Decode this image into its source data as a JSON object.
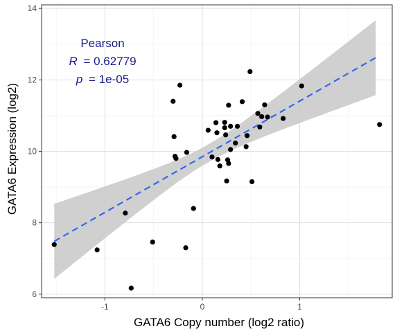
{
  "chart_data": {
    "type": "scatter",
    "xlabel": "GATA6 Copy number (log2 ratio)",
    "ylabel": "GATA6 Expression (log2)",
    "xlim": [
      -1.65,
      1.95
    ],
    "ylim": [
      5.9,
      14.1
    ],
    "x_ticks": [
      -1,
      0,
      1
    ],
    "y_ticks": [
      6,
      8,
      10,
      12,
      14
    ],
    "grid": true,
    "colors": {
      "points": "#000000",
      "fit_line": "#3366ee",
      "ci_band": "#c8c8c8",
      "annotation": "#1a1a8c",
      "grid_major": "#e0e0e0",
      "grid_minor": "#f2f2f2",
      "panel_border": "#333333"
    },
    "annotation": {
      "title": "Pearson",
      "r_symbol": "R",
      "r_value": "= 0.62779",
      "p_symbol": "p",
      "p_value": "= 1e-05"
    },
    "fit": {
      "x": [
        -1.52,
        1.78
      ],
      "y": [
        7.48,
        12.62
      ],
      "ci_upper": [
        8.55,
        13.72
      ],
      "ci_lower": [
        6.45,
        11.62
      ],
      "ci_center_x": 0.05,
      "ci_center_half_width": 0.25
    },
    "points": [
      {
        "x": -1.52,
        "y": 7.39
      },
      {
        "x": -1.08,
        "y": 7.24
      },
      {
        "x": -0.79,
        "y": 8.27
      },
      {
        "x": -0.73,
        "y": 6.17
      },
      {
        "x": -0.51,
        "y": 7.46
      },
      {
        "x": -0.3,
        "y": 11.4
      },
      {
        "x": -0.29,
        "y": 10.41
      },
      {
        "x": -0.28,
        "y": 9.86
      },
      {
        "x": -0.27,
        "y": 9.8
      },
      {
        "x": -0.23,
        "y": 11.85
      },
      {
        "x": -0.17,
        "y": 7.3
      },
      {
        "x": -0.16,
        "y": 9.97
      },
      {
        "x": -0.09,
        "y": 8.4
      },
      {
        "x": 0.06,
        "y": 10.59
      },
      {
        "x": 0.1,
        "y": 9.84
      },
      {
        "x": 0.14,
        "y": 10.8
      },
      {
        "x": 0.15,
        "y": 10.52
      },
      {
        "x": 0.16,
        "y": 9.77
      },
      {
        "x": 0.18,
        "y": 9.59
      },
      {
        "x": 0.23,
        "y": 10.81
      },
      {
        "x": 0.23,
        "y": 10.66
      },
      {
        "x": 0.24,
        "y": 10.46
      },
      {
        "x": 0.25,
        "y": 9.17
      },
      {
        "x": 0.26,
        "y": 9.76
      },
      {
        "x": 0.27,
        "y": 9.66
      },
      {
        "x": 0.27,
        "y": 11.29
      },
      {
        "x": 0.29,
        "y": 10.7
      },
      {
        "x": 0.29,
        "y": 10.05
      },
      {
        "x": 0.34,
        "y": 10.23
      },
      {
        "x": 0.36,
        "y": 10.7
      },
      {
        "x": 0.41,
        "y": 11.39
      },
      {
        "x": 0.45,
        "y": 10.13
      },
      {
        "x": 0.46,
        "y": 10.44
      },
      {
        "x": 0.49,
        "y": 12.23
      },
      {
        "x": 0.51,
        "y": 9.15
      },
      {
        "x": 0.57,
        "y": 11.06
      },
      {
        "x": 0.59,
        "y": 10.68
      },
      {
        "x": 0.61,
        "y": 10.97
      },
      {
        "x": 0.64,
        "y": 11.3
      },
      {
        "x": 0.67,
        "y": 10.96
      },
      {
        "x": 0.83,
        "y": 10.92
      },
      {
        "x": 1.02,
        "y": 11.83
      },
      {
        "x": 1.82,
        "y": 10.75
      }
    ]
  }
}
